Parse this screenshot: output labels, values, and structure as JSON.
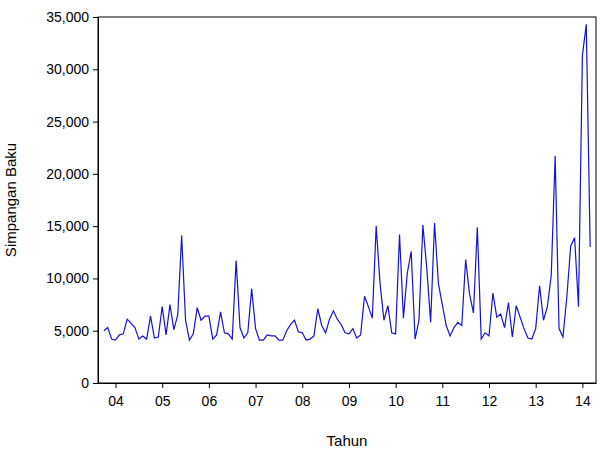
{
  "chart_data": {
    "type": "line",
    "x_label": "Tahun",
    "y_label": "Simpangan Baku",
    "color": "#1414d2",
    "grid": false,
    "ylim": [
      0,
      35000
    ],
    "yticks": [
      0,
      {
        "value": 5000,
        "label": "5,000"
      },
      {
        "value": 10000,
        "label": "10,000"
      },
      {
        "value": 15000,
        "label": "15,000"
      },
      {
        "value": 20000,
        "label": "20,000"
      },
      {
        "value": 25000,
        "label": "25,000"
      },
      {
        "value": 30000,
        "label": "30,000"
      },
      {
        "value": 35000,
        "label": "35,000"
      }
    ],
    "categories": [
      null,
      null,
      null,
      "04",
      null,
      null,
      null,
      null,
      null,
      null,
      null,
      null,
      null,
      null,
      null,
      "05",
      null,
      null,
      null,
      null,
      null,
      null,
      null,
      null,
      null,
      null,
      null,
      "06",
      null,
      null,
      null,
      null,
      null,
      null,
      null,
      null,
      null,
      null,
      null,
      "07",
      null,
      null,
      null,
      null,
      null,
      null,
      null,
      null,
      null,
      null,
      null,
      "08",
      null,
      null,
      null,
      null,
      null,
      null,
      null,
      null,
      null,
      null,
      null,
      "09",
      null,
      null,
      null,
      null,
      null,
      null,
      null,
      null,
      null,
      null,
      null,
      "10",
      null,
      null,
      null,
      null,
      null,
      null,
      null,
      null,
      null,
      null,
      null,
      "11",
      null,
      null,
      null,
      null,
      null,
      null,
      null,
      null,
      null,
      null,
      null,
      "12",
      null,
      null,
      null,
      null,
      null,
      null,
      null,
      null,
      null,
      null,
      null,
      "13",
      null,
      null,
      null,
      null,
      null,
      null,
      null,
      null,
      null,
      null,
      null,
      "14",
      null,
      null
    ],
    "values": [
      5000,
      5300,
      4200,
      4100,
      4600,
      4700,
      6100,
      5700,
      5300,
      4200,
      4500,
      4200,
      6400,
      4300,
      4400,
      7300,
      4600,
      7500,
      5100,
      6500,
      14100,
      6000,
      4100,
      4700,
      7200,
      6000,
      6400,
      6400,
      4200,
      4600,
      6800,
      4800,
      4700,
      4200,
      11700,
      5300,
      4300,
      4800,
      9000,
      5200,
      4100,
      4100,
      4600,
      4500,
      4500,
      4100,
      4100,
      5000,
      5600,
      6000,
      4900,
      4800,
      4100,
      4200,
      4500,
      7100,
      5500,
      4800,
      6100,
      6900,
      6100,
      5600,
      4800,
      4700,
      5200,
      4300,
      4600,
      8300,
      7300,
      6200,
      15000,
      9500,
      6000,
      7400,
      4800,
      4700,
      14200,
      6200,
      10500,
      12600,
      4200,
      6000,
      15100,
      11000,
      5800,
      15300,
      9500,
      7500,
      5500,
      4500,
      5300,
      5800,
      5500,
      11800,
      8500,
      6700,
      14900,
      4200,
      4800,
      4500,
      8600,
      6300,
      6600,
      5300,
      7700,
      4400,
      7400,
      6300,
      5200,
      4300,
      4200,
      5200,
      9300,
      6000,
      7300,
      10300,
      21700,
      5200,
      4400,
      8200,
      13100,
      13900,
      7300,
      31300,
      34300,
      13000
    ]
  }
}
